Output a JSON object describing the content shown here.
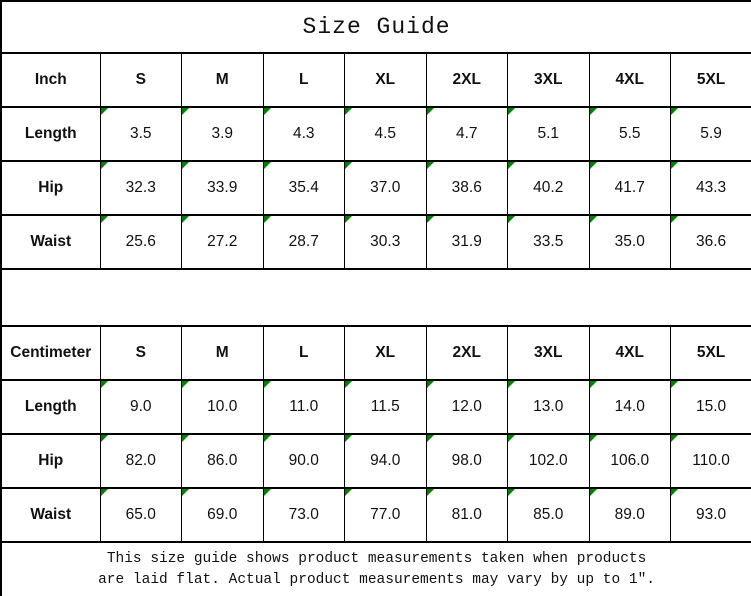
{
  "title": "Size Guide",
  "sizes": [
    "S",
    "M",
    "L",
    "XL",
    "2XL",
    "3XL",
    "4XL",
    "5XL"
  ],
  "tables": [
    {
      "unit_label": "Inch",
      "rows": [
        {
          "label": "Length",
          "values": [
            "3.5",
            "3.9",
            "4.3",
            "4.5",
            "4.7",
            "5.1",
            "5.5",
            "5.9"
          ]
        },
        {
          "label": "Hip",
          "values": [
            "32.3",
            "33.9",
            "35.4",
            "37.0",
            "38.6",
            "40.2",
            "41.7",
            "43.3"
          ]
        },
        {
          "label": "Waist",
          "values": [
            "25.6",
            "27.2",
            "28.7",
            "30.3",
            "31.9",
            "33.5",
            "35.0",
            "36.6"
          ]
        }
      ]
    },
    {
      "unit_label": "Centimeter",
      "rows": [
        {
          "label": "Length",
          "values": [
            "9.0",
            "10.0",
            "11.0",
            "11.5",
            "12.0",
            "13.0",
            "14.0",
            "15.0"
          ]
        },
        {
          "label": "Hip",
          "values": [
            "82.0",
            "86.0",
            "90.0",
            "94.0",
            "98.0",
            "102.0",
            "106.0",
            "110.0"
          ]
        },
        {
          "label": "Waist",
          "values": [
            "65.0",
            "69.0",
            "73.0",
            "77.0",
            "81.0",
            "85.0",
            "89.0",
            "93.0"
          ]
        }
      ]
    }
  ],
  "footer": {
    "line1": "This size guide shows product measurements taken when products",
    "line2": "are laid flat. Actual product measurements may vary by up to 1″."
  },
  "colors": {
    "background": "#ffffff",
    "border": "#000000",
    "text": "#111111",
    "cell_flag_green": "#008000"
  },
  "icons": {
    "cell_flag": "green-corner-triangle"
  }
}
